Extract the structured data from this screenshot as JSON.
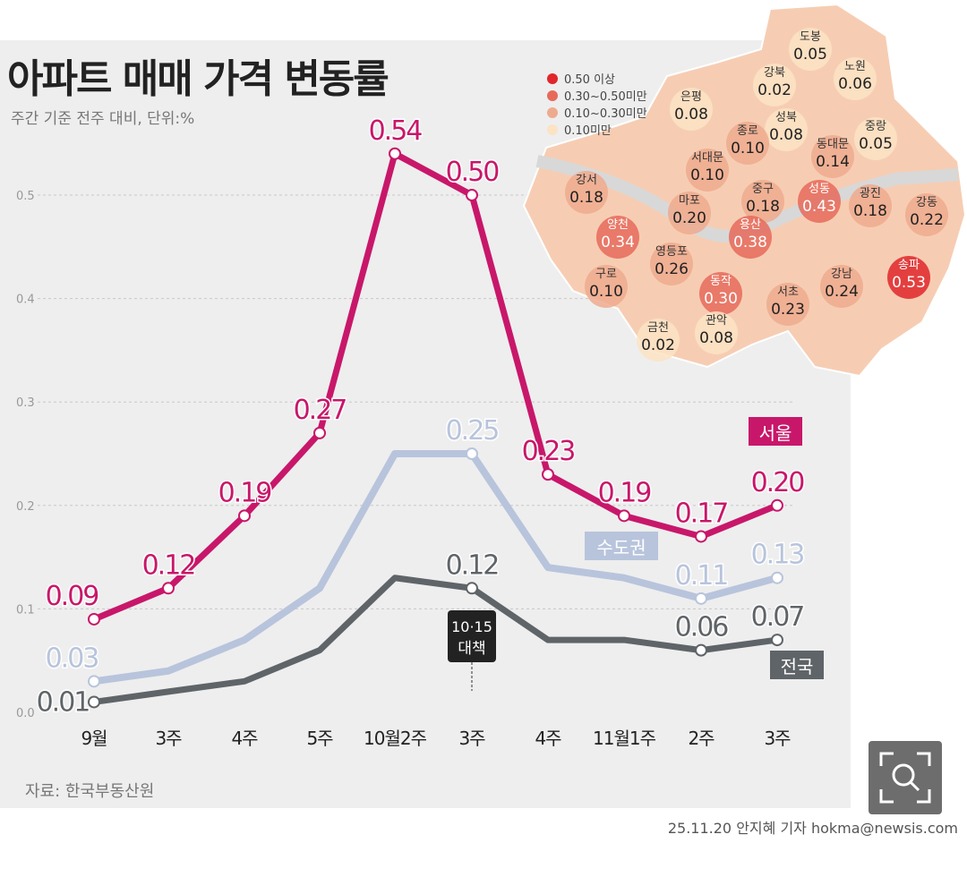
{
  "title": "아파트 매매 가격 변동률",
  "subtitle": "주간 기준 전주 대비, 단위:%",
  "source": "자료: 한국부동산원",
  "credit": "25.11.20 안지혜 기자 hokma@newsis.com",
  "annotation": {
    "line1": "10·15",
    "line2": "대책"
  },
  "chart_data": {
    "type": "line",
    "categories": [
      "9월",
      "3주",
      "4주",
      "5주",
      "10월2주",
      "3주",
      "4주",
      "11월1주",
      "2주",
      "3주"
    ],
    "yticks": [
      "0.0",
      "0.1",
      "0.2",
      "0.3",
      "0.4",
      "0.5"
    ],
    "ylim": [
      0,
      0.55
    ],
    "grid": true,
    "series": [
      {
        "name": "서울",
        "color": "#c8176a",
        "values": [
          0.09,
          0.12,
          0.19,
          0.27,
          0.54,
          0.5,
          0.23,
          0.19,
          0.17,
          0.2
        ],
        "labels": [
          "0.09",
          "0.12",
          "0.19",
          "0.27",
          "0.54",
          "0.50",
          "0.23",
          "0.19",
          "0.17",
          "0.20"
        ]
      },
      {
        "name": "수도권",
        "color": "#b8c4dc",
        "values": [
          0.03,
          0.04,
          0.07,
          0.12,
          0.25,
          0.25,
          0.14,
          0.13,
          0.11,
          0.13
        ],
        "labels": [
          "0.03",
          "",
          "",
          "",
          "",
          "0.25",
          "",
          "",
          "0.11",
          "0.13"
        ]
      },
      {
        "name": "전국",
        "color": "#5f6468",
        "values": [
          0.01,
          0.02,
          0.03,
          0.06,
          0.13,
          0.12,
          0.07,
          0.07,
          0.06,
          0.07
        ],
        "labels": [
          "0.01",
          "",
          "",
          "",
          "",
          "0.12",
          "",
          "",
          "0.06",
          "0.07"
        ]
      }
    ]
  },
  "map": {
    "legend": [
      {
        "label": "0.50 이상",
        "color": "#e0262a"
      },
      {
        "label": "0.30~0.50미만",
        "color": "#e66a5a"
      },
      {
        "label": "0.10~0.30미만",
        "color": "#eeaa8e"
      },
      {
        "label": "0.10미만",
        "color": "#fbe3c4"
      }
    ],
    "districts": [
      {
        "name": "도봉",
        "value": "0.05"
      },
      {
        "name": "노원",
        "value": "0.06"
      },
      {
        "name": "강북",
        "value": "0.02"
      },
      {
        "name": "은평",
        "value": "0.08"
      },
      {
        "name": "성북",
        "value": "0.08"
      },
      {
        "name": "중랑",
        "value": "0.05"
      },
      {
        "name": "종로",
        "value": "0.10"
      },
      {
        "name": "동대문",
        "value": "0.14"
      },
      {
        "name": "서대문",
        "value": "0.10"
      },
      {
        "name": "강서",
        "value": "0.18"
      },
      {
        "name": "마포",
        "value": "0.20"
      },
      {
        "name": "중구",
        "value": "0.18"
      },
      {
        "name": "성동",
        "value": "0.43"
      },
      {
        "name": "광진",
        "value": "0.18"
      },
      {
        "name": "강동",
        "value": "0.22"
      },
      {
        "name": "양천",
        "value": "0.34"
      },
      {
        "name": "용산",
        "value": "0.38"
      },
      {
        "name": "영등포",
        "value": "0.26"
      },
      {
        "name": "동작",
        "value": "0.30"
      },
      {
        "name": "구로",
        "value": "0.10"
      },
      {
        "name": "송파",
        "value": "0.53"
      },
      {
        "name": "강남",
        "value": "0.24"
      },
      {
        "name": "서초",
        "value": "0.23"
      },
      {
        "name": "관악",
        "value": "0.08"
      },
      {
        "name": "금천",
        "value": "0.02"
      }
    ]
  }
}
